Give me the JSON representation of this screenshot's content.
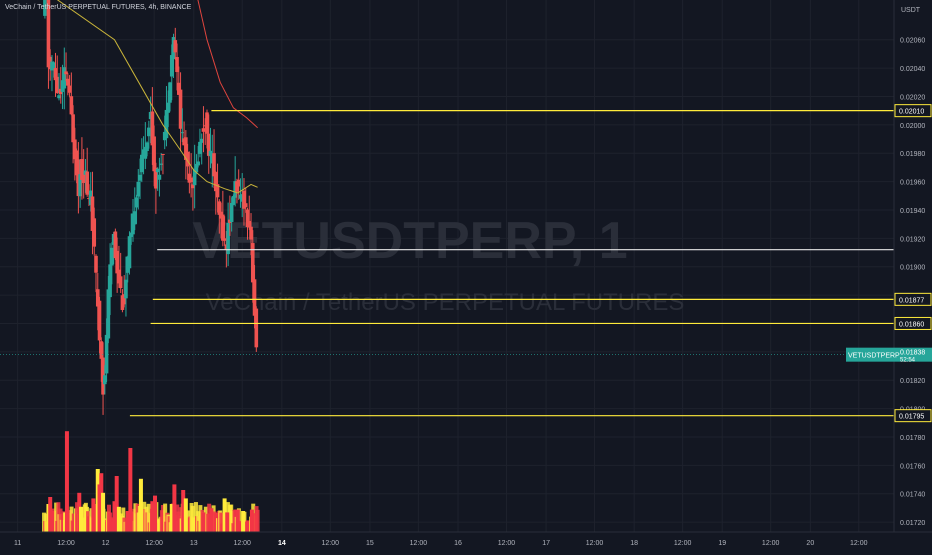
{
  "chart_title": "VeChain / TetherUS PERPETUAL FUTURES, 4h, BINANCE",
  "watermark": {
    "symbol": "VETUSDTPERP, 1",
    "name": "VeChain / TetherUS PERPETUAL FUTURES"
  },
  "currency_label": "USDT",
  "current_price": {
    "symbol": "VETUSDTPERP",
    "price": "0.01838",
    "countdown": "52:54"
  },
  "colors": {
    "background": "#131722",
    "up": "#26a69a",
    "down": "#ef5350",
    "level": "#ffeb3b",
    "ma_fast": "#c9b43a",
    "ma_slow": "#e0453e",
    "vol_up": "#ffeb3b",
    "vol_down": "#f23645"
  },
  "chart_data": {
    "type": "candlestick",
    "price_ticks": [
      "0.02060",
      "0.02040",
      "0.02020",
      "0.02000",
      "0.01980",
      "0.01960",
      "0.01940",
      "0.01920",
      "0.01900",
      "0.01880",
      "0.01860",
      "0.01840",
      "0.01820",
      "0.01800",
      "0.01780",
      "0.01760",
      "0.01740",
      "0.01720"
    ],
    "ylim": [
      0.01713,
      0.02088
    ],
    "time_ticks": [
      {
        "label": "11",
        "t": -0.6
      },
      {
        "label": "12:00",
        "t": 0.5
      },
      {
        "label": "12",
        "t": 1.4
      },
      {
        "label": "12:00",
        "t": 2.5
      },
      {
        "label": "13",
        "t": 3.4
      },
      {
        "label": "12:00",
        "t": 4.5
      },
      {
        "label": "14",
        "t": 5.4
      },
      {
        "label": "12:00",
        "t": 6.5
      },
      {
        "label": "15",
        "t": 7.4
      },
      {
        "label": "12:00",
        "t": 8.5
      },
      {
        "label": "16",
        "t": 9.4
      },
      {
        "label": "12:00",
        "t": 10.5
      },
      {
        "label": "17",
        "t": 11.4
      },
      {
        "label": "12:00",
        "t": 12.5
      },
      {
        "label": "18",
        "t": 13.4
      },
      {
        "label": "12:00",
        "t": 14.5
      },
      {
        "label": "19",
        "t": 15.4
      },
      {
        "label": "12:00",
        "t": 16.5
      },
      {
        "label": "20",
        "t": 17.4
      },
      {
        "label": "12:00",
        "t": 18.5
      }
    ],
    "xlim": [
      -1,
      19.3
    ],
    "price_path": [
      [
        0.0,
        0.02075
      ],
      [
        0.04,
        0.02105
      ],
      [
        0.1,
        0.0209
      ],
      [
        0.11,
        0.02055
      ],
      [
        0.13,
        0.0203
      ],
      [
        0.18,
        0.02045
      ],
      [
        0.25,
        0.0204
      ],
      [
        0.3,
        0.02025
      ],
      [
        0.4,
        0.0202
      ],
      [
        0.5,
        0.0204
      ],
      [
        0.55,
        0.0203
      ],
      [
        0.6,
        0.02018
      ],
      [
        0.7,
        0.01985
      ],
      [
        0.75,
        0.01975
      ],
      [
        0.8,
        0.0195
      ],
      [
        0.85,
        0.01975
      ],
      [
        0.9,
        0.0196
      ],
      [
        0.95,
        0.0197
      ],
      [
        1.0,
        0.0195
      ],
      [
        1.05,
        0.01945
      ],
      [
        1.08,
        0.01955
      ],
      [
        1.12,
        0.0193
      ],
      [
        1.17,
        0.01905
      ],
      [
        1.22,
        0.0188
      ],
      [
        1.25,
        0.0187
      ],
      [
        1.28,
        0.0185
      ],
      [
        1.32,
        0.0184
      ],
      [
        1.36,
        0.01815
      ],
      [
        1.38,
        0.018
      ],
      [
        1.42,
        0.0184
      ],
      [
        1.48,
        0.0188
      ],
      [
        1.55,
        0.0191
      ],
      [
        1.6,
        0.01925
      ],
      [
        1.65,
        0.01905
      ],
      [
        1.7,
        0.01895
      ],
      [
        1.78,
        0.0188
      ],
      [
        1.82,
        0.0187
      ],
      [
        1.88,
        0.0189
      ],
      [
        1.95,
        0.01915
      ],
      [
        2.0,
        0.0192
      ],
      [
        2.05,
        0.01935
      ],
      [
        2.1,
        0.0195
      ],
      [
        2.15,
        0.0196
      ],
      [
        2.22,
        0.0197
      ],
      [
        2.3,
        0.01985
      ],
      [
        2.38,
        0.01995
      ],
      [
        2.45,
        0.0201
      ],
      [
        2.5,
        0.01975
      ],
      [
        2.55,
        0.0196
      ],
      [
        2.62,
        0.01965
      ],
      [
        2.7,
        0.0198
      ],
      [
        2.78,
        0.02
      ],
      [
        2.85,
        0.02025
      ],
      [
        2.92,
        0.0205
      ],
      [
        2.98,
        0.02065
      ],
      [
        3.02,
        0.0204
      ],
      [
        3.08,
        0.0202
      ],
      [
        3.12,
        0.02
      ],
      [
        3.18,
        0.0199
      ],
      [
        3.25,
        0.01975
      ],
      [
        3.32,
        0.01965
      ],
      [
        3.4,
        0.0196
      ],
      [
        3.48,
        0.0197
      ],
      [
        3.55,
        0.01985
      ],
      [
        3.62,
        0.01995
      ],
      [
        3.68,
        0.02005
      ],
      [
        3.72,
        0.0199
      ],
      [
        3.78,
        0.0198
      ],
      [
        3.85,
        0.01975
      ],
      [
        3.9,
        0.0196
      ],
      [
        3.95,
        0.01945
      ],
      [
        4.0,
        0.01935
      ],
      [
        4.05,
        0.0193
      ],
      [
        4.1,
        0.0192
      ],
      [
        4.15,
        0.0191
      ],
      [
        4.2,
        0.0193
      ],
      [
        4.28,
        0.0194
      ],
      [
        4.33,
        0.01955
      ],
      [
        4.38,
        0.0196
      ],
      [
        4.42,
        0.01955
      ],
      [
        4.48,
        0.01945
      ],
      [
        4.52,
        0.0195
      ],
      [
        4.58,
        0.01945
      ],
      [
        4.62,
        0.01935
      ],
      [
        4.68,
        0.0193
      ],
      [
        4.72,
        0.0192
      ],
      [
        4.75,
        0.01895
      ],
      [
        4.78,
        0.0189
      ],
      [
        4.82,
        0.01842
      ],
      [
        4.85,
        0.01836
      ]
    ],
    "moving_averages": [
      {
        "color": "#c9b43a",
        "points": [
          [
            0.22,
            0.0209
          ],
          [
            1.6,
            0.0206
          ],
          [
            2.7,
            0.02
          ],
          [
            3.1,
            0.01982
          ],
          [
            3.4,
            0.01968
          ],
          [
            3.7,
            0.0196
          ],
          [
            4.1,
            0.01955
          ],
          [
            4.4,
            0.01952
          ],
          [
            4.7,
            0.01958
          ],
          [
            4.85,
            0.01956
          ]
        ]
      },
      {
        "color": "#e0453e",
        "points": [
          [
            3.48,
            0.0209
          ],
          [
            3.7,
            0.0206
          ],
          [
            4.0,
            0.0203
          ],
          [
            4.3,
            0.02012
          ],
          [
            4.6,
            0.02005
          ],
          [
            4.85,
            0.01998
          ]
        ]
      }
    ],
    "levels": [
      {
        "price": 0.0209,
        "label": "",
        "from_t": 3.0
      },
      {
        "price": 0.0201,
        "label": "0.02010",
        "from_t": 3.8
      },
      {
        "price": 0.01912,
        "label": "",
        "from_t": 2.57,
        "white": true
      },
      {
        "price": 0.01877,
        "label": "0.01877",
        "from_t": 2.47
      },
      {
        "price": 0.0186,
        "label": "0.01860",
        "from_t": 2.42
      },
      {
        "price": 0.01795,
        "label": "0.01795",
        "from_t": 1.95
      }
    ],
    "volume_bars": [
      {
        "t": 0.1,
        "v": 0.2
      },
      {
        "t": 0.14,
        "v": 0.25
      },
      {
        "t": 0.18,
        "v": 0.15
      },
      {
        "t": 0.48,
        "v": 0.14
      },
      {
        "t": 0.52,
        "v": 0.72
      },
      {
        "t": 0.8,
        "v": 0.28
      },
      {
        "t": 0.84,
        "v": 0.18
      },
      {
        "t": 1.12,
        "v": 0.24
      },
      {
        "t": 1.16,
        "v": 0.2
      },
      {
        "t": 1.22,
        "v": 0.45
      },
      {
        "t": 1.26,
        "v": 0.34
      },
      {
        "t": 1.3,
        "v": 0.42
      },
      {
        "t": 1.34,
        "v": 0.28
      },
      {
        "t": 1.6,
        "v": 0.22
      },
      {
        "t": 1.65,
        "v": 0.4
      },
      {
        "t": 1.7,
        "v": 0.18
      },
      {
        "t": 1.9,
        "v": 0.15
      },
      {
        "t": 1.96,
        "v": 0.6
      },
      {
        "t": 2.2,
        "v": 0.38
      },
      {
        "t": 2.46,
        "v": 0.22
      },
      {
        "t": 2.52,
        "v": 0.26
      },
      {
        "t": 2.9,
        "v": 0.2
      },
      {
        "t": 2.96,
        "v": 0.34
      },
      {
        "t": 3.16,
        "v": 0.3
      },
      {
        "t": 3.22,
        "v": 0.24
      },
      {
        "t": 3.62,
        "v": 0.14
      },
      {
        "t": 3.8,
        "v": 0.17
      },
      {
        "t": 4.1,
        "v": 0.24
      },
      {
        "t": 4.16,
        "v": 0.14
      },
      {
        "t": 4.4,
        "v": 0.16
      },
      {
        "t": 4.52,
        "v": 0.15
      },
      {
        "t": 4.72,
        "v": 0.16
      }
    ]
  }
}
